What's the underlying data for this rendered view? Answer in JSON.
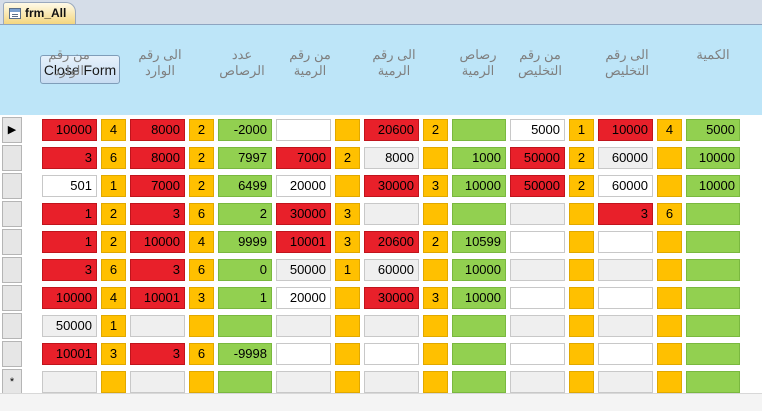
{
  "tab": {
    "label": "frm_All"
  },
  "form": {
    "close_label": "Close Form"
  },
  "columns": [
    "من رقم الوارد",
    "",
    "الى رقم الوارد",
    "",
    "عدد الرصاص",
    "من رقم الرمية",
    "",
    "الى رقم الرمية",
    "",
    "رصاص الرمية",
    "من رقم التخليص",
    "",
    "الى رقم التخليص",
    "",
    "الكمية"
  ],
  "colors": {
    "red": "#e8202a",
    "orange": "#ffc000",
    "green": "#92d050",
    "white": "#ffffff",
    "gray": "#efefef"
  },
  "record_selectors": [
    "▶",
    "",
    "",
    "",
    "",
    "",
    "",
    "",
    "",
    "*"
  ],
  "rows": [
    [
      {
        "t": "10000",
        "c": "red"
      },
      {
        "t": "4",
        "c": "orange"
      },
      {
        "t": "8000",
        "c": "red"
      },
      {
        "t": "2",
        "c": "orange"
      },
      {
        "t": "-2000",
        "c": "green"
      },
      {
        "t": "",
        "c": "white"
      },
      {
        "t": "",
        "c": "orange"
      },
      {
        "t": "20600",
        "c": "red"
      },
      {
        "t": "2",
        "c": "orange"
      },
      {
        "t": "",
        "c": "green"
      },
      {
        "t": "5000",
        "c": "white"
      },
      {
        "t": "1",
        "c": "orange"
      },
      {
        "t": "10000",
        "c": "red"
      },
      {
        "t": "4",
        "c": "orange"
      },
      {
        "t": "5000",
        "c": "green"
      }
    ],
    [
      {
        "t": "3",
        "c": "red"
      },
      {
        "t": "6",
        "c": "orange"
      },
      {
        "t": "8000",
        "c": "red"
      },
      {
        "t": "2",
        "c": "orange"
      },
      {
        "t": "7997",
        "c": "green"
      },
      {
        "t": "7000",
        "c": "red"
      },
      {
        "t": "2",
        "c": "orange"
      },
      {
        "t": "8000",
        "c": "gray"
      },
      {
        "t": "",
        "c": "orange"
      },
      {
        "t": "1000",
        "c": "green"
      },
      {
        "t": "50000",
        "c": "red"
      },
      {
        "t": "2",
        "c": "orange"
      },
      {
        "t": "60000",
        "c": "gray"
      },
      {
        "t": "",
        "c": "orange"
      },
      {
        "t": "10000",
        "c": "green"
      }
    ],
    [
      {
        "t": "501",
        "c": "white"
      },
      {
        "t": "1",
        "c": "orange"
      },
      {
        "t": "7000",
        "c": "red"
      },
      {
        "t": "2",
        "c": "orange"
      },
      {
        "t": "6499",
        "c": "green"
      },
      {
        "t": "20000",
        "c": "white"
      },
      {
        "t": "",
        "c": "orange"
      },
      {
        "t": "30000",
        "c": "red"
      },
      {
        "t": "3",
        "c": "orange"
      },
      {
        "t": "10000",
        "c": "green"
      },
      {
        "t": "50000",
        "c": "red"
      },
      {
        "t": "2",
        "c": "orange"
      },
      {
        "t": "60000",
        "c": "white"
      },
      {
        "t": "",
        "c": "orange"
      },
      {
        "t": "10000",
        "c": "green"
      }
    ],
    [
      {
        "t": "1",
        "c": "red"
      },
      {
        "t": "2",
        "c": "orange"
      },
      {
        "t": "3",
        "c": "red"
      },
      {
        "t": "6",
        "c": "orange"
      },
      {
        "t": "2",
        "c": "green"
      },
      {
        "t": "30000",
        "c": "red"
      },
      {
        "t": "3",
        "c": "orange"
      },
      {
        "t": "",
        "c": "gray"
      },
      {
        "t": "",
        "c": "orange"
      },
      {
        "t": "",
        "c": "green"
      },
      {
        "t": "",
        "c": "gray"
      },
      {
        "t": "",
        "c": "orange"
      },
      {
        "t": "3",
        "c": "red"
      },
      {
        "t": "6",
        "c": "orange"
      },
      {
        "t": "",
        "c": "green"
      }
    ],
    [
      {
        "t": "1",
        "c": "red"
      },
      {
        "t": "2",
        "c": "orange"
      },
      {
        "t": "10000",
        "c": "red"
      },
      {
        "t": "4",
        "c": "orange"
      },
      {
        "t": "9999",
        "c": "green"
      },
      {
        "t": "10001",
        "c": "red"
      },
      {
        "t": "3",
        "c": "orange"
      },
      {
        "t": "20600",
        "c": "red"
      },
      {
        "t": "2",
        "c": "orange"
      },
      {
        "t": "10599",
        "c": "green"
      },
      {
        "t": "",
        "c": "white"
      },
      {
        "t": "",
        "c": "orange"
      },
      {
        "t": "",
        "c": "white"
      },
      {
        "t": "",
        "c": "orange"
      },
      {
        "t": "",
        "c": "green"
      }
    ],
    [
      {
        "t": "3",
        "c": "red"
      },
      {
        "t": "6",
        "c": "orange"
      },
      {
        "t": "3",
        "c": "red"
      },
      {
        "t": "6",
        "c": "orange"
      },
      {
        "t": "0",
        "c": "green"
      },
      {
        "t": "50000",
        "c": "gray"
      },
      {
        "t": "1",
        "c": "orange"
      },
      {
        "t": "60000",
        "c": "gray"
      },
      {
        "t": "",
        "c": "orange"
      },
      {
        "t": "10000",
        "c": "green"
      },
      {
        "t": "",
        "c": "gray"
      },
      {
        "t": "",
        "c": "orange"
      },
      {
        "t": "",
        "c": "gray"
      },
      {
        "t": "",
        "c": "orange"
      },
      {
        "t": "",
        "c": "green"
      }
    ],
    [
      {
        "t": "10000",
        "c": "red"
      },
      {
        "t": "4",
        "c": "orange"
      },
      {
        "t": "10001",
        "c": "red"
      },
      {
        "t": "3",
        "c": "orange"
      },
      {
        "t": "1",
        "c": "green"
      },
      {
        "t": "20000",
        "c": "white"
      },
      {
        "t": "",
        "c": "orange"
      },
      {
        "t": "30000",
        "c": "red"
      },
      {
        "t": "3",
        "c": "orange"
      },
      {
        "t": "10000",
        "c": "green"
      },
      {
        "t": "",
        "c": "white"
      },
      {
        "t": "",
        "c": "orange"
      },
      {
        "t": "",
        "c": "white"
      },
      {
        "t": "",
        "c": "orange"
      },
      {
        "t": "",
        "c": "green"
      }
    ],
    [
      {
        "t": "50000",
        "c": "gray"
      },
      {
        "t": "1",
        "c": "orange"
      },
      {
        "t": "",
        "c": "gray"
      },
      {
        "t": "",
        "c": "orange"
      },
      {
        "t": "",
        "c": "green"
      },
      {
        "t": "",
        "c": "gray"
      },
      {
        "t": "",
        "c": "orange"
      },
      {
        "t": "",
        "c": "gray"
      },
      {
        "t": "",
        "c": "orange"
      },
      {
        "t": "",
        "c": "green"
      },
      {
        "t": "",
        "c": "gray"
      },
      {
        "t": "",
        "c": "orange"
      },
      {
        "t": "",
        "c": "gray"
      },
      {
        "t": "",
        "c": "orange"
      },
      {
        "t": "",
        "c": "green"
      }
    ],
    [
      {
        "t": "10001",
        "c": "red"
      },
      {
        "t": "3",
        "c": "orange"
      },
      {
        "t": "3",
        "c": "red"
      },
      {
        "t": "6",
        "c": "orange"
      },
      {
        "t": "-9998",
        "c": "green"
      },
      {
        "t": "",
        "c": "white"
      },
      {
        "t": "",
        "c": "orange"
      },
      {
        "t": "",
        "c": "white"
      },
      {
        "t": "",
        "c": "orange"
      },
      {
        "t": "",
        "c": "green"
      },
      {
        "t": "",
        "c": "white"
      },
      {
        "t": "",
        "c": "orange"
      },
      {
        "t": "",
        "c": "white"
      },
      {
        "t": "",
        "c": "orange"
      },
      {
        "t": "",
        "c": "green"
      }
    ],
    [
      {
        "t": "",
        "c": "gray"
      },
      {
        "t": "",
        "c": "orange"
      },
      {
        "t": "",
        "c": "gray"
      },
      {
        "t": "",
        "c": "orange"
      },
      {
        "t": "",
        "c": "green"
      },
      {
        "t": "",
        "c": "gray"
      },
      {
        "t": "",
        "c": "orange"
      },
      {
        "t": "",
        "c": "gray"
      },
      {
        "t": "",
        "c": "orange"
      },
      {
        "t": "",
        "c": "green"
      },
      {
        "t": "",
        "c": "gray"
      },
      {
        "t": "",
        "c": "orange"
      },
      {
        "t": "",
        "c": "gray"
      },
      {
        "t": "",
        "c": "orange"
      },
      {
        "t": "",
        "c": "green"
      }
    ]
  ]
}
